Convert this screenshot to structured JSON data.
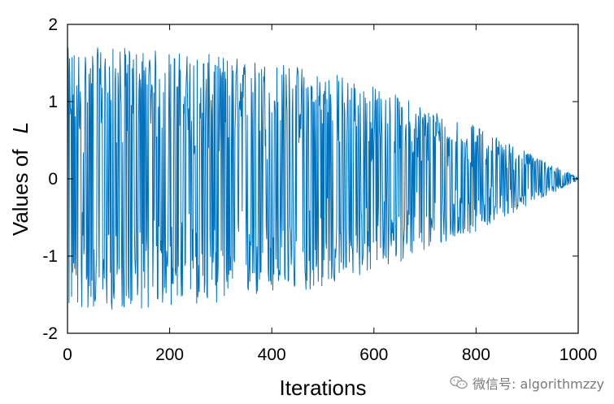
{
  "chart_data": {
    "type": "line",
    "title": "",
    "xlabel": "Iterations",
    "ylabel_prefix": "Values of",
    "ylabel_var": "L",
    "xlim": [
      0,
      1000
    ],
    "ylim": [
      -2,
      2
    ],
    "x_ticks": [
      0,
      200,
      400,
      600,
      800,
      1000
    ],
    "y_ticks": [
      -2,
      -1,
      0,
      1,
      2
    ],
    "x_tick_labels": [
      "0",
      "200",
      "400",
      "600",
      "800",
      "1000"
    ],
    "y_tick_labels": [
      "-2",
      "-1",
      "0",
      "1",
      "2"
    ],
    "grid": false,
    "series": [
      {
        "color": "#0072BD",
        "n_points": 1000,
        "envelope": {
          "x": [
            0,
            50,
            100,
            200,
            300,
            400,
            500,
            550,
            600,
            700,
            800,
            900,
            1000
          ],
          "y": [
            1.7,
            1.7,
            1.7,
            1.66,
            1.6,
            1.52,
            1.42,
            1.32,
            1.2,
            0.95,
            0.68,
            0.35,
            0.02
          ]
        }
      }
    ]
  },
  "watermark": {
    "text": "微信号: algorithmzzy"
  }
}
